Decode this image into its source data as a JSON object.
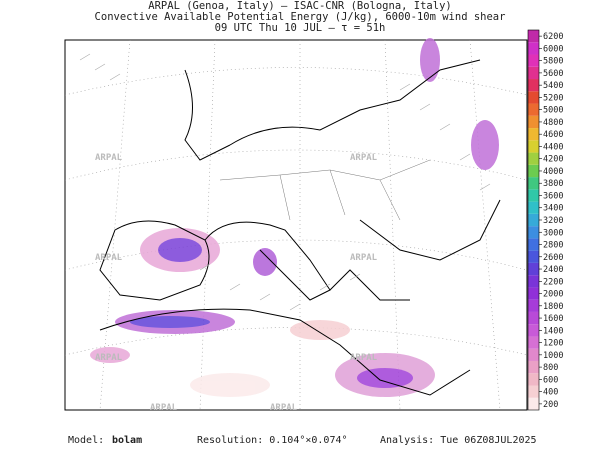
{
  "header": {
    "lines": [
      "ARPAL (Genoa, Italy)  —  ISAC-CNR (Bologna, Italy)",
      "Convective Available Potential Energy (J/kg), 6000-10m wind shear",
      "09 UTC Thu 10 JUL  –  τ = 51h"
    ]
  },
  "watermark": "ARPAL",
  "colorbar": {
    "ticks": [
      200,
      400,
      600,
      800,
      1000,
      1200,
      1400,
      1600,
      1800,
      2000,
      2200,
      2400,
      2600,
      2800,
      3000,
      3200,
      3400,
      3600,
      3800,
      4000,
      4200,
      4400,
      4600,
      4800,
      5000,
      5200,
      5400,
      5600,
      5800,
      6000,
      6200
    ],
    "colors": [
      "#fbeaea",
      "#f6d0d3",
      "#f0b8c6",
      "#eaa0c6",
      "#e088cc",
      "#d670d4",
      "#c85ad8",
      "#b84ad8",
      "#a63cd8",
      "#9030d8",
      "#7a34d8",
      "#6040d8",
      "#4a56dc",
      "#4070e0",
      "#3c8ee0",
      "#36aad8",
      "#30c0c8",
      "#30c8a8",
      "#40c880",
      "#6ccc50",
      "#a0d040",
      "#d8d030",
      "#f0b830",
      "#f09030",
      "#ec6a30",
      "#e44a30",
      "#e03060",
      "#e03090",
      "#e030b8",
      "#d030c8",
      "#c02aa8"
    ]
  },
  "footer": {
    "model_label": "Model:",
    "model": "bolam",
    "resolution": "Resolution: 0.104°×0.074°",
    "analysis": "Analysis: Tue 06Z08JUL2025"
  }
}
